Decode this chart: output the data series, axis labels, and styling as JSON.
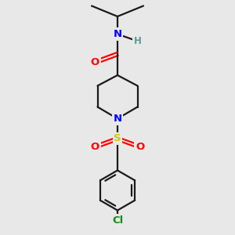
{
  "bg_color": "#e8e8e8",
  "bond_color": "#1a1a1a",
  "N_color": "#0000ff",
  "O_color": "#ff0000",
  "S_color": "#cccc00",
  "Cl_color": "#1a8c1a",
  "H_color": "#5a9a9a",
  "line_width": 1.6,
  "fig_size": [
    3.0,
    3.0
  ],
  "dpi": 100,
  "xlim": [
    0,
    10
  ],
  "ylim": [
    0,
    10
  ]
}
